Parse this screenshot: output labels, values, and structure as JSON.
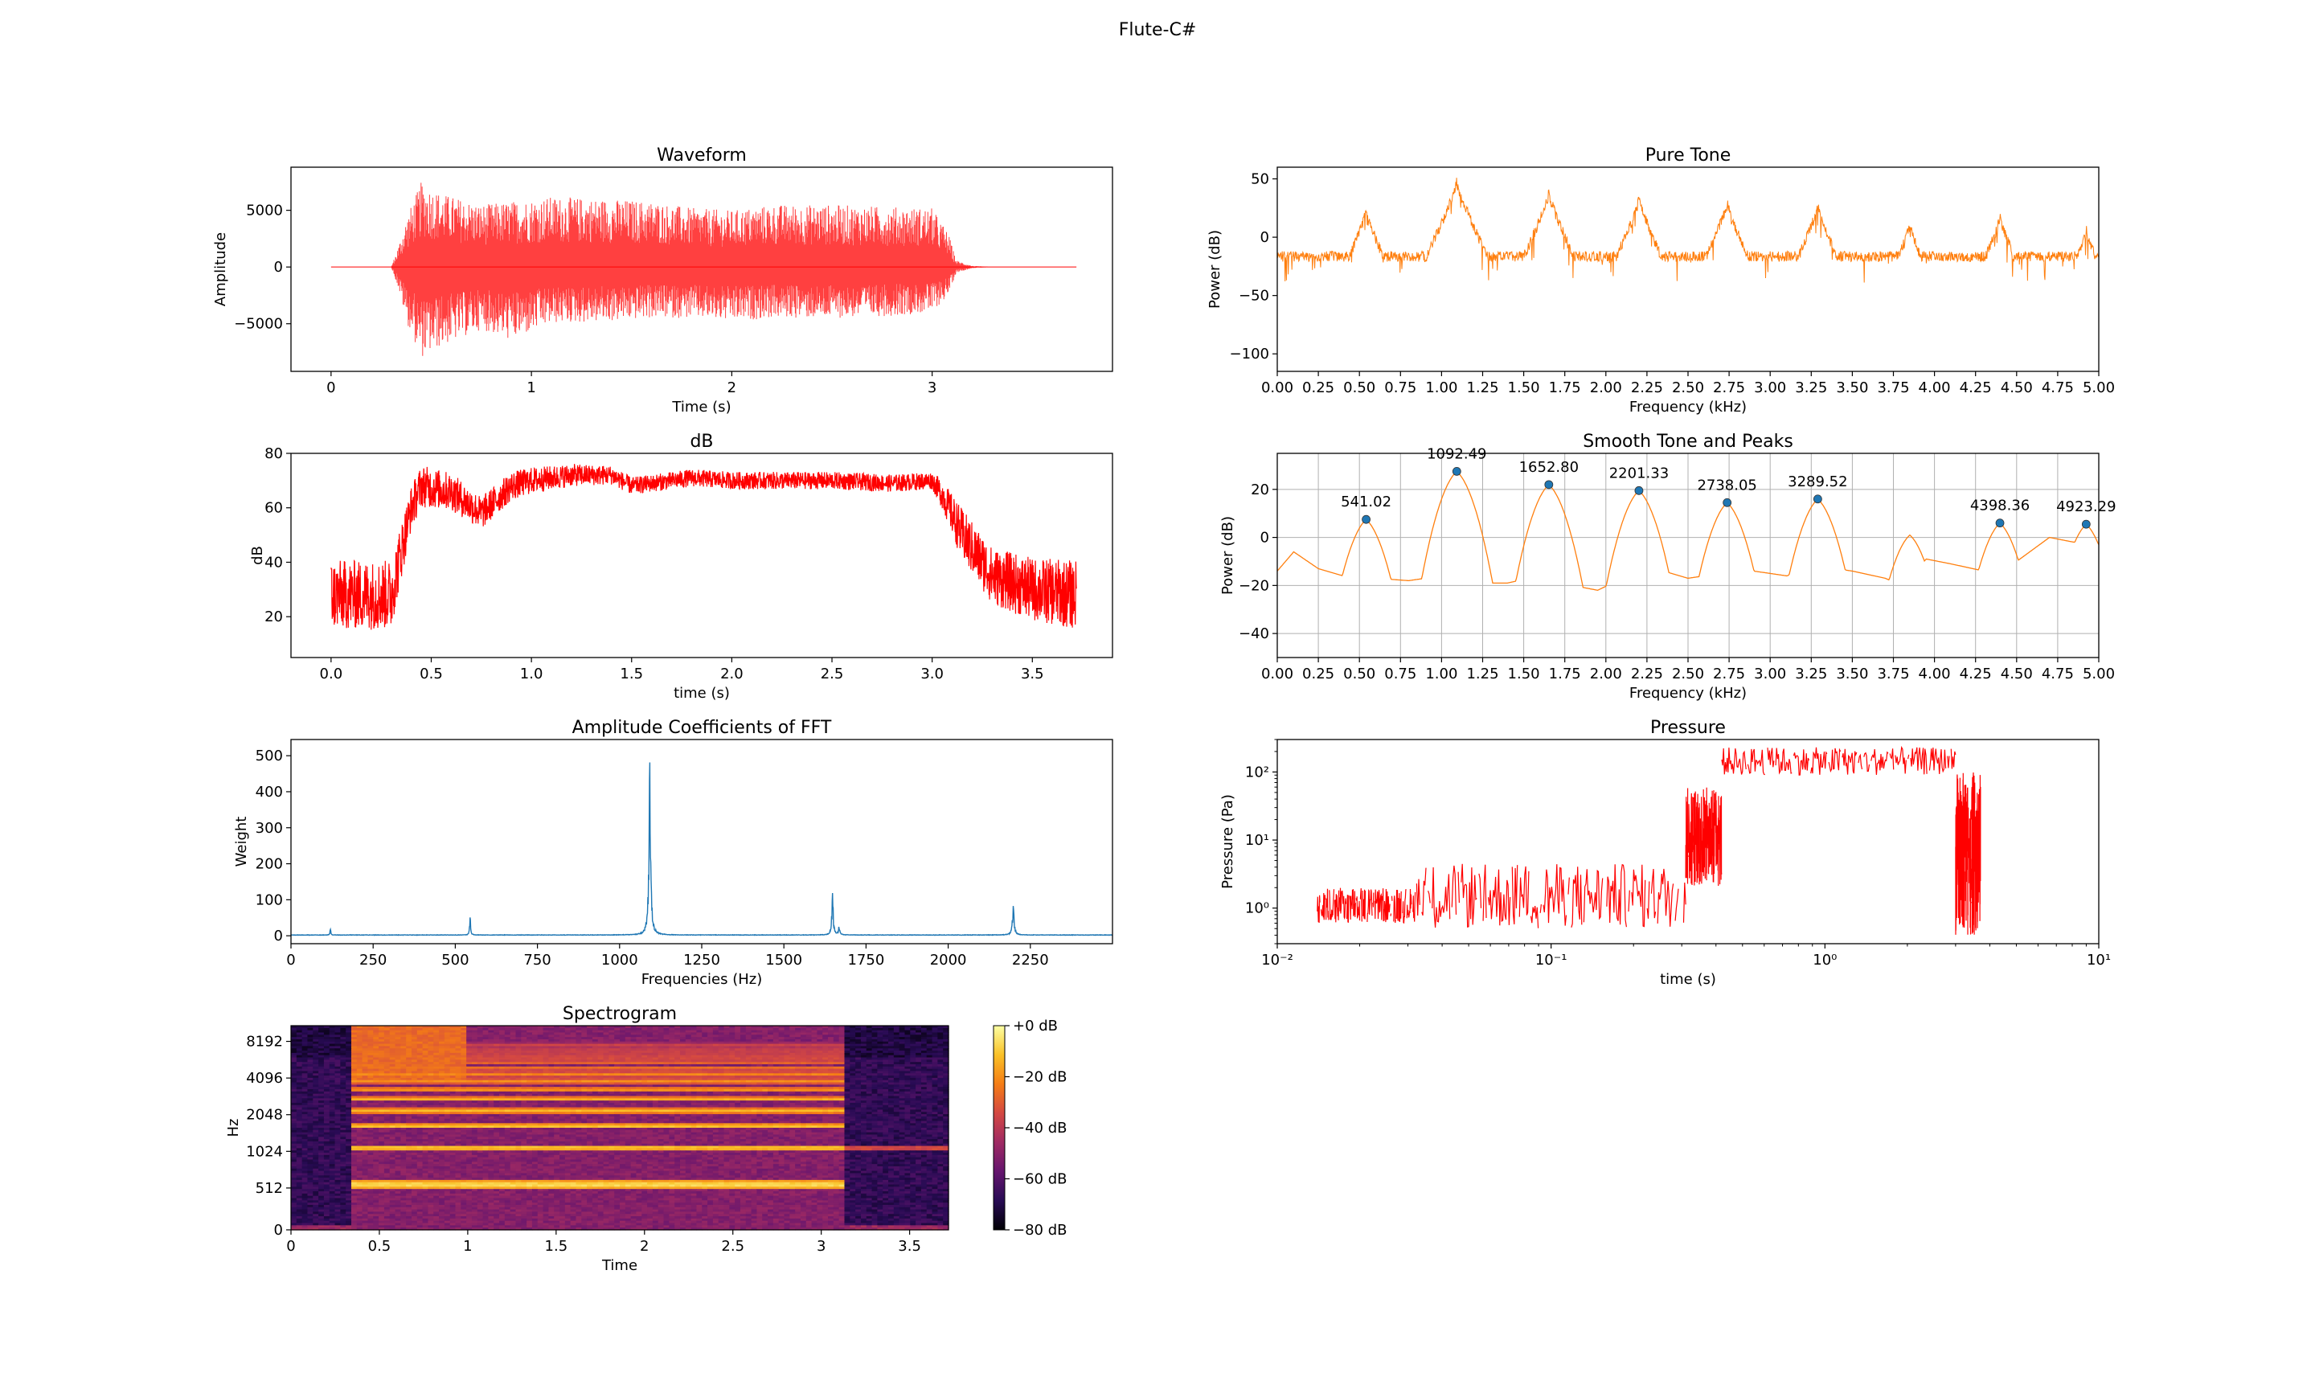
{
  "figure": {
    "suptitle": "Flute-C#"
  },
  "colors": {
    "red": "#ff0000",
    "orange": "#ff7f0e",
    "blue": "#1f77b4",
    "peak_marker": "#1f77b4"
  },
  "chart_data": [
    {
      "id": "waveform",
      "type": "line",
      "title": "Waveform",
      "xlabel": "Time (s)",
      "ylabel": "Amplitude",
      "xlim": [
        -0.2,
        3.9
      ],
      "ylim": [
        -9200,
        8800
      ],
      "xticks": [
        0,
        1,
        2,
        3
      ],
      "xticklabels": [
        "0",
        "1",
        "2",
        "3"
      ],
      "yticks": [
        -5000,
        0,
        5000
      ],
      "yticklabels": [
        "−5000",
        "0",
        "5000"
      ],
      "grid": false,
      "series": [
        {
          "color": "#ff0000",
          "x_range": [
            0,
            3.72
          ],
          "envelope": {
            "t": [
              0,
              0.3,
              0.33,
              0.38,
              0.45,
              0.55,
              0.75,
              0.9,
              1.1,
              1.4,
              1.6,
              1.8,
              2.0,
              2.2,
              2.5,
              2.8,
              3.0,
              3.08,
              3.12,
              3.2,
              3.3,
              3.72
            ],
            "upper": [
              0,
              0,
              1500,
              4500,
              7500,
              6500,
              5500,
              5800,
              6200,
              6000,
              5800,
              5200,
              5000,
              5500,
              5500,
              5300,
              5200,
              3000,
              600,
              100,
              0,
              0
            ],
            "lower": [
              0,
              0,
              -1500,
              -5000,
              -8000,
              -7000,
              -5500,
              -6500,
              -5000,
              -4800,
              -4500,
              -4500,
              -4800,
              -4500,
              -4500,
              -4300,
              -4000,
              -2500,
              -500,
              -100,
              0,
              0
            ]
          }
        }
      ]
    },
    {
      "id": "pure_tone",
      "type": "line",
      "title": "Pure Tone",
      "xlabel": "Frequency (kHz)",
      "ylabel": "Power (dB)",
      "xlim": [
        0,
        5
      ],
      "ylim": [
        -115,
        60
      ],
      "xticks": [
        0,
        0.25,
        0.5,
        0.75,
        1.0,
        1.25,
        1.5,
        1.75,
        2.0,
        2.25,
        2.5,
        2.75,
        3.0,
        3.25,
        3.5,
        3.75,
        4.0,
        4.25,
        4.5,
        4.75,
        5.0
      ],
      "xticklabels": [
        "0.00",
        "0.25",
        "0.50",
        "0.75",
        "1.00",
        "1.25",
        "1.50",
        "1.75",
        "2.00",
        "2.25",
        "2.50",
        "2.75",
        "3.00",
        "3.25",
        "3.50",
        "3.75",
        "4.00",
        "4.25",
        "4.50",
        "4.75",
        "5.00"
      ],
      "yticks": [
        -100,
        -50,
        0,
        50
      ],
      "yticklabels": [
        "−100",
        "−50",
        "0",
        "50"
      ],
      "grid": false,
      "series": [
        {
          "color": "#ff7f0e",
          "baseline_db": -12,
          "noise_db": 9,
          "peaks": [
            {
              "x": 0.541,
              "y": 28
            },
            {
              "x": 1.0925,
              "y": 53
            },
            {
              "x": 1.6528,
              "y": 43
            },
            {
              "x": 2.2013,
              "y": 38
            },
            {
              "x": 2.7381,
              "y": 35
            },
            {
              "x": 3.2895,
              "y": 32
            },
            {
              "x": 3.85,
              "y": 16
            },
            {
              "x": 4.3984,
              "y": 22
            },
            {
              "x": 4.9233,
              "y": 12
            }
          ]
        }
      ]
    },
    {
      "id": "db",
      "type": "line",
      "title": "dB",
      "xlabel": "time (s)",
      "ylabel": "dB",
      "xlim": [
        -0.2,
        3.9
      ],
      "ylim": [
        5,
        80
      ],
      "xticks": [
        0,
        0.5,
        1.0,
        1.5,
        2.0,
        2.5,
        3.0,
        3.5
      ],
      "xticklabels": [
        "0.0",
        "0.5",
        "1.0",
        "1.5",
        "2.0",
        "2.5",
        "3.0",
        "3.5"
      ],
      "yticks": [
        20,
        40,
        60,
        80
      ],
      "yticklabels": [
        "20",
        "40",
        "60",
        "80"
      ],
      "grid": false,
      "series": [
        {
          "color": "#ff0000",
          "center": {
            "t": [
              0,
              0.3,
              0.4,
              0.45,
              0.6,
              0.75,
              0.9,
              1.0,
              1.2,
              1.4,
              1.5,
              1.6,
              1.8,
              2.0,
              2.2,
              2.5,
              2.8,
              3.0,
              3.05,
              3.15,
              3.3,
              3.5,
              3.72
            ],
            "values": [
              28,
              28,
              60,
              68,
              66,
              58,
              68,
              70,
              72,
              72,
              68,
              69,
              71,
              70,
              70,
              70,
              69,
              70,
              65,
              50,
              35,
              30,
              28
            ]
          },
          "spread": {
            "t": [
              0,
              0.3,
              0.4,
              1.0,
              1.5,
              3.0,
              3.15,
              3.72
            ],
            "values": [
              16,
              16,
              10,
              6,
              4,
              4,
              12,
              16
            ]
          }
        }
      ]
    },
    {
      "id": "smooth_tone",
      "type": "line",
      "title": "Smooth Tone and Peaks",
      "xlabel": "Frequency (kHz)",
      "ylabel": "Power (dB)",
      "xlim": [
        0,
        5
      ],
      "ylim": [
        -50,
        35
      ],
      "xticks": [
        0,
        0.25,
        0.5,
        0.75,
        1.0,
        1.25,
        1.5,
        1.75,
        2.0,
        2.25,
        2.5,
        2.75,
        3.0,
        3.25,
        3.5,
        3.75,
        4.0,
        4.25,
        4.5,
        4.75,
        5.0
      ],
      "xticklabels": [
        "0.00",
        "0.25",
        "0.50",
        "0.75",
        "1.00",
        "1.25",
        "1.50",
        "1.75",
        "2.00",
        "2.25",
        "2.50",
        "2.75",
        "3.00",
        "3.25",
        "3.50",
        "3.75",
        "4.00",
        "4.25",
        "4.50",
        "4.75",
        "5.00"
      ],
      "yticks": [
        -40,
        -20,
        0,
        20
      ],
      "yticklabels": [
        "−40",
        "−20",
        "0",
        "20"
      ],
      "grid": true,
      "series": [
        {
          "color": "#ff7f0e",
          "baseline": {
            "x": [
              0,
              0.1,
              0.25,
              0.4,
              0.6,
              0.8,
              1.0,
              1.2,
              1.4,
              1.6,
              1.8,
              1.95,
              2.1,
              2.3,
              2.5,
              2.7,
              2.9,
              3.1,
              3.3,
              3.5,
              3.7,
              3.8,
              3.95,
              4.1,
              4.3,
              4.5,
              4.7,
              4.85,
              5.0
            ],
            "y": [
              -14,
              -6,
              -13,
              -16,
              -17,
              -18,
              -16,
              -19,
              -19,
              -16,
              -20,
              -22,
              -17,
              -13,
              -17,
              -15,
              -14,
              -16,
              -12,
              -14,
              -17,
              -20,
              -9,
              -11,
              -14,
              -10,
              0,
              -2,
              -3
            ]
          },
          "peaks": [
            {
              "x": 0.541,
              "y": 7.5
            },
            {
              "x": 1.0925,
              "y": 27.5
            },
            {
              "x": 1.6528,
              "y": 22.0
            },
            {
              "x": 2.2013,
              "y": 19.5
            },
            {
              "x": 2.7381,
              "y": 14.5
            },
            {
              "x": 3.2895,
              "y": 16.0
            },
            {
              "x": 3.85,
              "y": 1.0
            },
            {
              "x": 4.3984,
              "y": 6.0
            },
            {
              "x": 4.9233,
              "y": 5.5
            }
          ]
        }
      ],
      "labeled_peaks": [
        {
          "x": 0.541,
          "y": 7.5,
          "label": "541.02"
        },
        {
          "x": 1.0925,
          "y": 27.5,
          "label": "1092.49"
        },
        {
          "x": 1.6528,
          "y": 22.0,
          "label": "1652.80"
        },
        {
          "x": 2.2013,
          "y": 19.5,
          "label": "2201.33"
        },
        {
          "x": 2.7381,
          "y": 14.5,
          "label": "2738.05"
        },
        {
          "x": 3.2895,
          "y": 16.0,
          "label": "3289.52"
        },
        {
          "x": 4.3984,
          "y": 6.0,
          "label": "4398.36"
        },
        {
          "x": 4.9233,
          "y": 5.5,
          "label": "4923.29"
        }
      ]
    },
    {
      "id": "fft",
      "type": "line",
      "title": "Amplitude Coefficients of FFT",
      "xlabel": "Frequencies (Hz)",
      "ylabel": "Weight",
      "xlim": [
        0,
        2500
      ],
      "ylim": [
        -22,
        545
      ],
      "xticks": [
        0,
        250,
        500,
        750,
        1000,
        1250,
        1500,
        1750,
        2000,
        2250
      ],
      "xticklabels": [
        "0",
        "250",
        "500",
        "750",
        "1000",
        "1250",
        "1500",
        "1750",
        "2000",
        "2250"
      ],
      "yticks": [
        0,
        100,
        200,
        300,
        400,
        500
      ],
      "yticklabels": [
        "0",
        "100",
        "200",
        "300",
        "400",
        "500"
      ],
      "grid": false,
      "series": [
        {
          "color": "#1f77b4",
          "peaks": [
            {
              "x": 120,
              "y": 22,
              "w": 2
            },
            {
              "x": 545,
              "y": 62,
              "w": 2.5
            },
            {
              "x": 1092,
              "y": 515,
              "w": 5
            },
            {
              "x": 1648,
              "y": 125,
              "w": 4
            },
            {
              "x": 1668,
              "y": 25,
              "w": 4
            },
            {
              "x": 2198,
              "y": 82,
              "w": 5
            }
          ]
        }
      ]
    },
    {
      "id": "pressure",
      "type": "line",
      "title": "Pressure",
      "xlabel": "time (s)",
      "ylabel": "Pressure (Pa)",
      "xscale": "log",
      "yscale": "log",
      "xlim": [
        0.01,
        10
      ],
      "ylim": [
        0.3,
        300
      ],
      "xticks": [
        0.01,
        0.1,
        1,
        10
      ],
      "xticklabels": [
        "10⁻²",
        "10⁻¹",
        "10⁰",
        "10¹"
      ],
      "yticks": [
        1,
        10,
        100
      ],
      "yticklabels": [
        "10⁰",
        "10¹",
        "10²"
      ],
      "grid": false,
      "series": [
        {
          "color": "#ff0000",
          "segments": [
            {
              "t0": 0.014,
              "t1": 0.032,
              "lo": 0.6,
              "hi": 2.0
            },
            {
              "t0": 0.032,
              "t1": 0.31,
              "lo": 0.5,
              "hi": 4.5
            },
            {
              "t0": 0.31,
              "t1": 0.42,
              "lo": 2,
              "hi": 60
            },
            {
              "t0": 0.42,
              "t1": 3.0,
              "lo": 90,
              "hi": 230
            },
            {
              "t0": 3.0,
              "t1": 3.7,
              "lo": 0.4,
              "hi": 100
            }
          ]
        }
      ]
    },
    {
      "id": "spectrogram",
      "type": "heatmap",
      "title": "Spectrogram",
      "xlabel": "Time",
      "ylabel": "Hz",
      "xlim": [
        0,
        3.72
      ],
      "xticks": [
        0,
        0.5,
        1,
        1.5,
        2,
        2.5,
        3,
        3.5
      ],
      "xticklabels": [
        "0",
        "0.5",
        "1",
        "1.5",
        "2",
        "2.5",
        "3",
        "3.5"
      ],
      "yticks": [
        0,
        512,
        1024,
        2048,
        4096,
        8192
      ],
      "yticklabels": [
        "0",
        "512",
        "1024",
        "2048",
        "4096",
        "8192"
      ],
      "yscale": "log-like",
      "ymax": 11025,
      "note_on": 0.33,
      "note_off": 3.13,
      "harmonics_hz": [
        545,
        1092,
        1648,
        2198,
        2745,
        3290,
        3840,
        4390,
        4940,
        5490,
        6040,
        6590,
        7140,
        7690
      ],
      "colorbar": {
        "ticks": [
          0,
          -20,
          -40,
          -60,
          -80
        ],
        "ticklabels": [
          "+0 dB",
          "−20 dB",
          "−40 dB",
          "−60 dB",
          "−80 dB"
        ],
        "range": [
          -80,
          0
        ]
      }
    }
  ]
}
